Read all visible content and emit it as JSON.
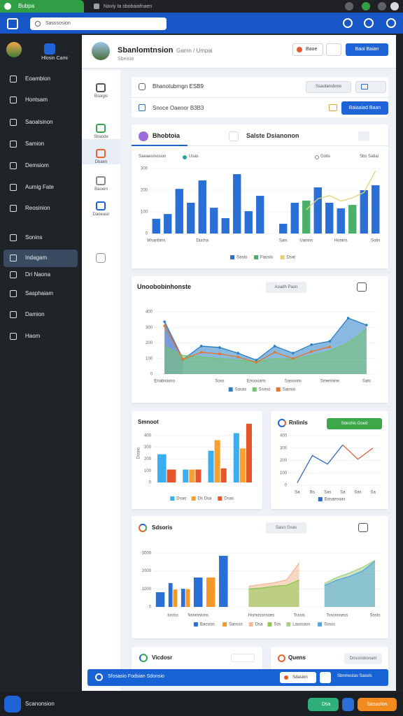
{
  "browser": {
    "tabs": [
      "Bubpa",
      "Naviy Ia sbobaiafnaen"
    ],
    "address": "Sasssosion"
  },
  "sidebar": {
    "profile": "Hlosin Cami",
    "items": [
      "Eoambion",
      "Hontsam",
      "Saoalsinon",
      "Samion",
      "Demsiom",
      "Aumig Fate",
      "Reosinion",
      "Sonins",
      "Indagam",
      "Dri Naona",
      "Sasphaiam",
      "Damion",
      "Haom"
    ]
  },
  "header": {
    "title": "Sbanlomtnsion",
    "breadcrumb": "Gamn / Umpai",
    "subtitle": "Sbeisia",
    "button_secondary": "Baoe",
    "button_primary": "Baoi Baian"
  },
  "subnav": {
    "items": [
      "Bsoigis",
      "Sbaode",
      "Dbaen",
      "Baoein",
      "Daoeasir"
    ]
  },
  "filters": [
    {
      "label": "Bhanotubrngn ESB9",
      "button": "Ssaotansbroo"
    },
    {
      "label": "Snoce Oaenor B3B3",
      "button": "Baiaaiad Baan"
    }
  ],
  "panels": [
    {
      "title": "Bhobtoia",
      "tab": "Salste Dsianonon",
      "meta": [
        "Saeaesinosion",
        "Usas",
        "Gotis",
        "Sbs Satiai"
      ],
      "chart": {
        "type": "bar",
        "ylim": [
          0,
          300
        ],
        "yticks": [
          0,
          100,
          200,
          300
        ],
        "grid": true,
        "categories": [
          "Wsanbins",
          null,
          null,
          null,
          "Ducha",
          null,
          null,
          null,
          null,
          null,
          null,
          "Sais",
          null,
          "Uanins",
          null,
          null,
          "Honins",
          null,
          null,
          "Sotis"
        ],
        "series": [
          {
            "name": "Sasto",
            "color": "#2a6fd6",
            "values": [
              68,
              90,
              206,
              142,
              245,
              119,
              71,
              274,
              103,
              174,
              null,
              45,
              142,
              null,
              213,
              142,
              116,
              null,
              200,
              223
            ]
          },
          {
            "name": "Faoslo",
            "color": "#4caf6a",
            "values": [
              null,
              null,
              null,
              null,
              null,
              null,
              null,
              null,
              null,
              null,
              null,
              null,
              null,
              152,
              null,
              null,
              null,
              132,
              null,
              null
            ]
          },
          {
            "name": "Dsat",
            "type": "line",
            "color": "#e2d37a",
            "values": [
              null,
              null,
              null,
              null,
              null,
              null,
              null,
              null,
              null,
              null,
              null,
              null,
              null,
              110,
              160,
              175,
              150,
              165,
              190,
              290
            ]
          }
        ]
      }
    },
    {
      "title": "Unoobobinhonste",
      "action": "Aoadh Paon",
      "chart": {
        "type": "area",
        "ylim": [
          0,
          400
        ],
        "yticks": [
          0,
          100,
          200,
          300,
          400
        ],
        "grid": true,
        "categories": [
          "Enabisiono",
          null,
          null,
          "Soss",
          null,
          "Enoouaris",
          null,
          "Sassoins",
          null,
          "Smennine",
          null,
          "Sats"
        ],
        "series": [
          {
            "color": "#b88ad8",
            "values": [
              340,
              100,
              null,
              null,
              null,
              null,
              null,
              null,
              null,
              null,
              null,
              null
            ]
          },
          {
            "name": "Sasas",
            "color": "#2a7fc4",
            "markers": true,
            "values": [
              337,
              94,
              180,
              171,
              135,
              90,
              180,
              135,
              189,
              211,
              360,
              315
            ]
          },
          {
            "name": "Ssoso",
            "color": "#74c46e",
            "values": [
              180,
              120,
              110,
              100,
              90,
              80,
              100,
              95,
              120,
              150,
              200,
              290
            ]
          },
          {
            "name": "Saosio",
            "type": "line",
            "color": "#e5742a",
            "markers": true,
            "values": [
              310,
              95,
              140,
              130,
              110,
              75,
              140,
              100,
              145,
              175,
              null,
              null
            ]
          }
        ]
      }
    },
    {
      "title": "Smnoot",
      "ylabel": "Dssno",
      "chart": {
        "type": "bar",
        "ylim": [
          0,
          500
        ],
        "yticks": [
          0,
          100,
          200,
          300,
          400
        ],
        "grid": true,
        "categories": [
          null,
          null,
          null,
          null
        ],
        "series": [
          {
            "name": "Dsao",
            "color": "#3aaef0",
            "values": [
              240,
              110,
              270,
              420
            ]
          },
          {
            "name": "Ds Dsa",
            "color": "#f5a030",
            "values": [
              null,
              110,
              360,
              290
            ]
          },
          {
            "name": "Dsas",
            "color": "#e6552b",
            "values": [
              110,
              110,
              120,
              500
            ]
          }
        ]
      }
    },
    {
      "title": "Rnlinls",
      "action": "Sdeshis Goed",
      "chart": {
        "type": "line",
        "ylim": [
          0,
          400
        ],
        "yticks": [
          0,
          100,
          200,
          300,
          400
        ],
        "grid": true,
        "categories": [
          "Sa",
          "Bs",
          "Sas",
          "Sa",
          "Sas",
          "Sa"
        ],
        "series": [
          {
            "name": "Basaesoas",
            "color": "#2b6cc4",
            "values": [
              20,
              240,
              170,
              325,
              null,
              null
            ]
          },
          {
            "color": "#e0603a",
            "values": [
              null,
              null,
              null,
              325,
              210,
              300
            ]
          }
        ]
      }
    },
    {
      "title": "Sdsoris",
      "action": "Sasis Gsas",
      "chart": {
        "type": "bar",
        "ylim": [
          0,
          3000
        ],
        "yticks": [
          0,
          1000,
          2000,
          3000
        ],
        "grid": true,
        "categories": [
          null,
          "Iustss",
          null,
          "Nsnmsions",
          null,
          null,
          null,
          null,
          "Hsmossnsoes",
          null,
          null,
          "Tsssis",
          null,
          null,
          "Tssonssess",
          null,
          null,
          "Sosts"
        ],
        "series": [
          {
            "name": "Bacsios",
            "color": "#2a6fd6",
            "values": [
              820,
              1330,
              1010,
              1640,
              null,
              2850,
              null,
              null,
              null,
              null,
              null,
              null,
              null,
              null,
              null,
              null,
              null,
              null
            ]
          },
          {
            "name": "Sansss",
            "color": "#f5982a",
            "values": [
              null,
              970,
              990,
              null,
              1640,
              null,
              null,
              null,
              null,
              null,
              null,
              null,
              null,
              null,
              null,
              null,
              null,
              null
            ]
          },
          {
            "name": "Dsa",
            "type": "area",
            "color": "#f0b896",
            "values": [
              null,
              null,
              null,
              null,
              null,
              null,
              null,
              1150,
              1250,
              1350,
              1500,
              2450,
              null,
              null,
              null,
              null,
              null,
              null
            ]
          },
          {
            "name": "Sss",
            "type": "area",
            "color": "#8cc84e",
            "values": [
              null,
              null,
              null,
              null,
              null,
              null,
              null,
              1000,
              1050,
              1150,
              1200,
              1500,
              null,
              null,
              null,
              null,
              null,
              null
            ]
          },
          {
            "name": "Lasssass",
            "type": "area",
            "color": "#a9d08a",
            "values": [
              null,
              null,
              null,
              null,
              null,
              null,
              null,
              null,
              null,
              null,
              null,
              null,
              null,
              1300,
              1650,
              1900,
              2200,
              2600
            ]
          },
          {
            "name": "Sssss",
            "type": "area",
            "color": "#52a8e0",
            "values": [
              null,
              null,
              null,
              null,
              null,
              null,
              null,
              null,
              null,
              null,
              null,
              null,
              null,
              1200,
              1500,
              1700,
              2000,
              2550
            ]
          }
        ]
      }
    },
    {
      "title": "Vicdosr"
    },
    {
      "title": "Quens",
      "action": "Dnsoosbonam"
    }
  ],
  "banner": {
    "text": "Sfosasio Fodsian Sdonsio",
    "button": "Sdasion",
    "link": "Sbnmestas Sasols"
  },
  "taskbar": {
    "label": "Scanonsion",
    "button_green": "Dsa",
    "button_orange": "Sasaolon"
  }
}
